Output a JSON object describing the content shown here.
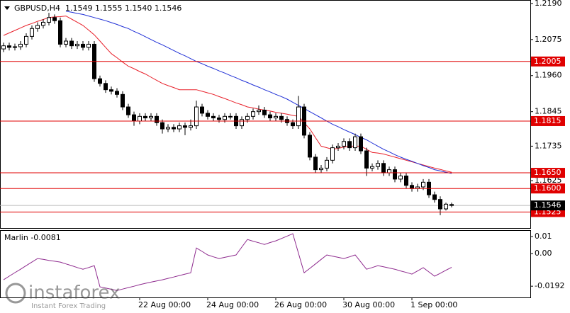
{
  "chart_data": [
    {
      "type": "candlestick",
      "title": "GBPUSD,H4  1.1549 1.1555 1.1540 1.1546",
      "categories": [
        null,
        null,
        null,
        null,
        null,
        null,
        null,
        null,
        null,
        null,
        null,
        null,
        null,
        null,
        null,
        null,
        null,
        null,
        null,
        null,
        null,
        null,
        null,
        null,
        "22 Aug 00:00",
        null,
        null,
        null,
        null,
        null,
        null,
        null,
        null,
        null,
        null,
        null,
        "24 Aug 00:00",
        null,
        null,
        null,
        null,
        null,
        null,
        null,
        null,
        null,
        null,
        null,
        "26 Aug 00:00",
        null,
        null,
        null,
        null,
        null,
        null,
        null,
        null,
        null,
        null,
        null,
        "30 Aug 00:00",
        null,
        null,
        null,
        null,
        null,
        null,
        null,
        null,
        null,
        null,
        null,
        "1 Sep 00:00",
        null,
        null,
        null,
        null,
        null,
        null,
        null
      ],
      "open": [
        1.2045,
        1.2055,
        1.205,
        1.2052,
        1.206,
        1.2085,
        1.211,
        1.212,
        1.213,
        1.2145,
        1.2135,
        1.206,
        1.207,
        1.2055,
        1.206,
        1.205,
        1.206,
        1.195,
        1.1935,
        1.1915,
        1.191,
        1.19,
        1.186,
        1.1835,
        1.1815,
        1.183,
        1.1825,
        1.183,
        1.181,
        1.179,
        1.1795,
        1.179,
        1.18,
        1.1795,
        1.18,
        1.186,
        1.184,
        1.183,
        1.1825,
        1.182,
        1.183,
        1.183,
        1.18,
        1.182,
        1.183,
        1.1845,
        1.185,
        1.1835,
        1.1825,
        1.183,
        1.182,
        1.181,
        1.18,
        1.186,
        1.177,
        1.17,
        1.166,
        1.1665,
        1.169,
        1.173,
        1.1735,
        1.175,
        1.173,
        1.1765,
        1.172,
        1.1665,
        1.167,
        1.168,
        1.165,
        1.166,
        1.163,
        1.164,
        1.161,
        1.16,
        1.1605,
        1.162,
        1.158,
        1.1565,
        1.1535,
        1.1549
      ],
      "high": [
        1.2065,
        1.2065,
        1.2062,
        1.207,
        1.2095,
        1.212,
        1.213,
        1.214,
        1.216,
        1.2155,
        1.2145,
        1.208,
        1.208,
        1.207,
        1.207,
        1.207,
        1.207,
        1.196,
        1.1945,
        1.1925,
        1.192,
        1.191,
        1.187,
        1.1845,
        1.184,
        1.184,
        1.184,
        1.184,
        1.182,
        1.1805,
        1.1805,
        1.181,
        1.181,
        1.182,
        1.188,
        1.187,
        1.185,
        1.184,
        1.1835,
        1.184,
        1.184,
        1.184,
        1.183,
        1.184,
        1.1855,
        1.1865,
        1.186,
        1.1845,
        1.184,
        1.184,
        1.183,
        1.182,
        1.1895,
        1.187,
        1.178,
        1.171,
        1.1675,
        1.17,
        1.174,
        1.1745,
        1.176,
        1.176,
        1.1775,
        1.1775,
        1.173,
        1.168,
        1.169,
        1.169,
        1.167,
        1.167,
        1.165,
        1.165,
        1.162,
        1.1615,
        1.163,
        1.163,
        1.159,
        1.1575,
        1.1555,
        1.1555
      ],
      "low": [
        1.2035,
        1.204,
        1.204,
        1.2042,
        1.205,
        1.2075,
        1.21,
        1.211,
        1.212,
        1.2125,
        1.205,
        1.205,
        1.2045,
        1.2045,
        1.204,
        1.204,
        1.194,
        1.1925,
        1.1905,
        1.19,
        1.189,
        1.185,
        1.1825,
        1.18,
        1.1805,
        1.1815,
        1.1815,
        1.18,
        1.1775,
        1.178,
        1.178,
        1.178,
        1.177,
        1.1785,
        1.179,
        1.183,
        1.182,
        1.1815,
        1.181,
        1.181,
        1.182,
        1.179,
        1.179,
        1.181,
        1.182,
        1.1835,
        1.1825,
        1.1815,
        1.1815,
        1.181,
        1.18,
        1.179,
        1.179,
        1.176,
        1.169,
        1.165,
        1.165,
        1.1655,
        1.168,
        1.172,
        1.1725,
        1.172,
        1.172,
        1.171,
        1.164,
        1.1655,
        1.166,
        1.164,
        1.164,
        1.162,
        1.162,
        1.16,
        1.159,
        1.159,
        1.1595,
        1.157,
        1.1555,
        1.1515,
        1.153,
        1.154
      ],
      "close": [
        1.2055,
        1.205,
        1.2052,
        1.206,
        1.2085,
        1.211,
        1.212,
        1.213,
        1.2145,
        1.2135,
        1.206,
        1.207,
        1.2055,
        1.206,
        1.205,
        1.206,
        1.195,
        1.1935,
        1.1915,
        1.191,
        1.19,
        1.186,
        1.1835,
        1.1815,
        1.183,
        1.1825,
        1.183,
        1.181,
        1.179,
        1.1795,
        1.179,
        1.18,
        1.1795,
        1.18,
        1.186,
        1.184,
        1.183,
        1.1825,
        1.182,
        1.183,
        1.183,
        1.18,
        1.182,
        1.183,
        1.1845,
        1.185,
        1.1835,
        1.1825,
        1.183,
        1.182,
        1.181,
        1.18,
        1.186,
        1.177,
        1.17,
        1.166,
        1.1665,
        1.169,
        1.173,
        1.1735,
        1.175,
        1.173,
        1.1765,
        1.172,
        1.1665,
        1.167,
        1.168,
        1.165,
        1.166,
        1.163,
        1.164,
        1.161,
        1.16,
        1.1605,
        1.162,
        1.158,
        1.1565,
        1.1535,
        1.155,
        1.1546
      ],
      "lines": [
        {
          "color": "#e8202a",
          "values": [
            1.2088,
            1.2096,
            1.2104,
            1.2112,
            1.212,
            1.2126,
            1.2133,
            1.2139,
            1.2145,
            1.2147,
            1.2148,
            1.215,
            1.214,
            1.213,
            1.212,
            1.2105,
            1.209,
            1.207,
            1.205,
            1.203,
            1.2017,
            1.2003,
            1.199,
            1.1982,
            1.1973,
            1.1965,
            1.1955,
            1.1945,
            1.1935,
            1.1928,
            1.1922,
            1.1915,
            1.1915,
            1.1915,
            1.1915,
            1.191,
            1.1905,
            1.19,
            1.1893,
            1.1887,
            1.188,
            1.1873,
            1.1867,
            1.186,
            1.1857,
            1.1853,
            1.185,
            1.1847,
            1.1843,
            1.184,
            1.1837,
            1.1833,
            1.183,
            1.181,
            1.179,
            1.1762,
            1.1735,
            1.173,
            1.1725,
            1.1728,
            1.1732,
            1.1735,
            1.1735,
            1.1735,
            1.1725,
            1.1715,
            1.1713,
            1.171,
            1.1705,
            1.17,
            1.1695,
            1.169,
            1.1685,
            1.168,
            1.1675,
            1.167,
            1.1665,
            1.1661,
            1.1656,
            1.1652
          ]
        },
        {
          "color": "#1f2fd6",
          "values": [
            null,
            null,
            null,
            null,
            null,
            null,
            null,
            null,
            null,
            null,
            null,
            1.2165,
            1.2162,
            1.2158,
            1.2155,
            1.215,
            1.2145,
            1.214,
            1.2135,
            1.2129,
            1.2123,
            1.2116,
            1.211,
            1.2101,
            1.2093,
            1.2084,
            1.2075,
            1.2066,
            1.2058,
            1.2049,
            1.204,
            1.2031,
            1.2023,
            1.2014,
            1.2005,
            1.1998,
            1.199,
            1.1983,
            1.1975,
            1.1968,
            1.196,
            1.1953,
            1.1945,
            1.1938,
            1.193,
            1.1923,
            1.1915,
            1.1908,
            1.19,
            1.1893,
            1.1885,
            1.1875,
            1.1865,
            1.1855,
            1.1845,
            1.1835,
            1.1825,
            1.1815,
            1.1805,
            1.1797,
            1.1788,
            1.178,
            1.1772,
            1.1763,
            1.1755,
            1.1745,
            1.1735,
            1.1725,
            1.1717,
            1.1708,
            1.17,
            1.1693,
            1.1687,
            1.168,
            1.1673,
            1.1667,
            1.166,
            1.1656,
            1.1652,
            1.1648
          ]
        }
      ],
      "levels": [
        1.2005,
        1.1815,
        {
          "value": 1.165,
          "label": "1.1650"
        },
        {
          "value": 1.16,
          "label": "1.1600"
        },
        1.1525
      ],
      "level_color": "#e00000",
      "current_price": 1.1546,
      "ylim": [
        1.1474,
        1.2201
      ],
      "yticks": [
        {
          "value": 1.219,
          "label": "1.2190"
        },
        1.2075,
        {
          "value": 1.196,
          "label": "1.1960"
        },
        1.1845,
        1.1735,
        1.1625
      ]
    },
    {
      "type": "line",
      "title": "Marlin -0.0081",
      "color": "#8e2a8e",
      "values": [
        -0.0154,
        -0.0133,
        -0.0112,
        -0.0092,
        -0.0071,
        -0.005,
        -0.0029,
        -0.0034,
        -0.004,
        -0.0045,
        -0.005,
        -0.0061,
        -0.0071,
        -0.0082,
        -0.0092,
        -0.0082,
        -0.0071,
        -0.0196,
        -0.0203,
        -0.021,
        -0.0217,
        -0.0209,
        -0.02,
        -0.0192,
        -0.0183,
        -0.0175,
        -0.0168,
        -0.0161,
        -0.0154,
        -0.0146,
        -0.0138,
        -0.0129,
        -0.0121,
        -0.0113,
        0.0033,
        0.0013,
        -0.0008,
        -0.0019,
        -0.0029,
        -0.0022,
        -0.0015,
        -0.0008,
        0.0038,
        0.0083,
        0.0073,
        0.0064,
        0.0054,
        0.0065,
        0.0075,
        0.0089,
        0.0103,
        0.0117,
        0.0002,
        -0.0113,
        -0.0087,
        -0.0061,
        -0.0034,
        -0.0008,
        -0.0015,
        -0.0022,
        -0.0029,
        -0.0019,
        -0.0008,
        -0.005,
        -0.0092,
        -0.0082,
        -0.0071,
        -0.0078,
        -0.0085,
        -0.0092,
        -0.0102,
        -0.0111,
        -0.0121,
        -0.0102,
        -0.0083,
        -0.0108,
        -0.0133,
        -0.0116,
        -0.0098,
        -0.0081
      ],
      "ylim": [
        -0.0258,
        0.0138
      ],
      "yticks": [
        0.01,
        {
          "value": 0,
          "label": "0.00"
        },
        -0.0192
      ]
    }
  ],
  "watermark": {
    "brand": "instaforex",
    "tagline": "Instant Forex Trading"
  }
}
